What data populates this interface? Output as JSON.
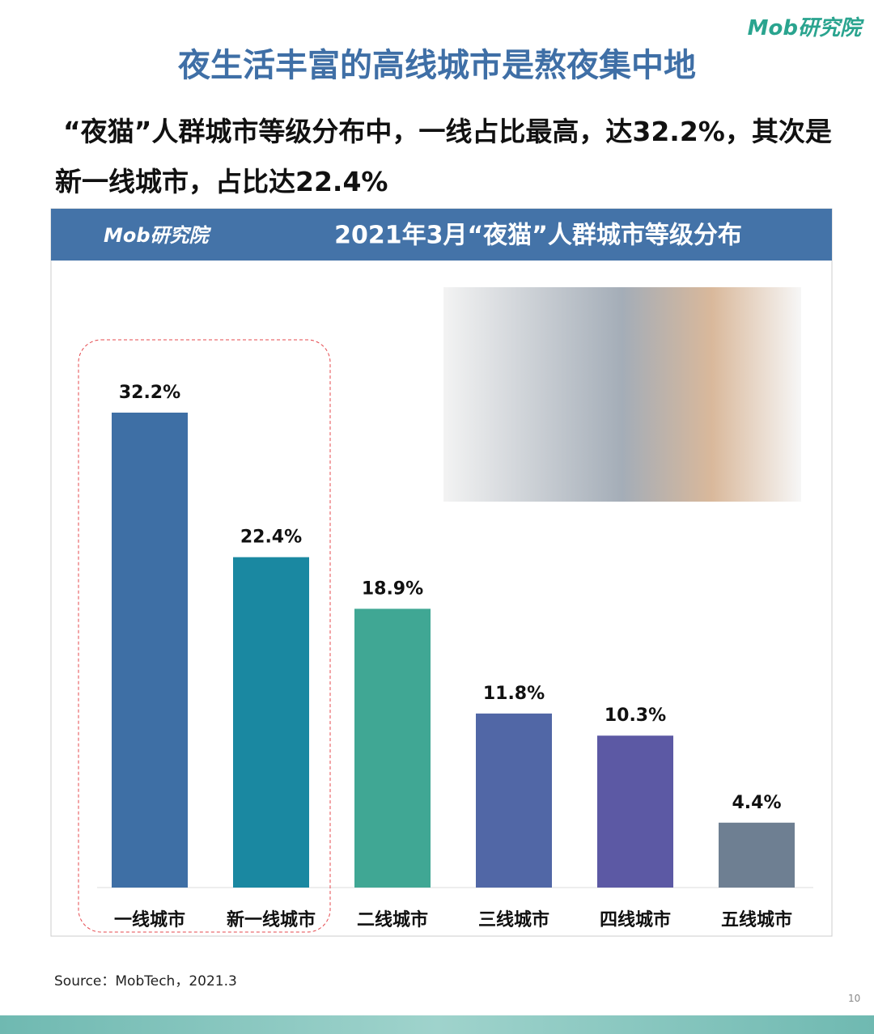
{
  "brand": "Mob研究院",
  "header": {
    "title": "夜生活丰富的高线城市是熬夜集中地",
    "subtitle": "“夜猫”人群城市等级分布中，一线占比最高，达32.2%，其次是新一线城市，占比达22.4%"
  },
  "panel": {
    "brand": "Mob研究院"
  },
  "chart_data": {
    "type": "bar",
    "title": "2021年3月“夜猫”人群城市等级分布",
    "categories": [
      "一线城市",
      "新一线城市",
      "二线城市",
      "三线城市",
      "四线城市",
      "五线城市"
    ],
    "values": [
      32.2,
      22.4,
      18.9,
      11.8,
      10.3,
      4.4
    ],
    "value_labels": [
      "32.2%",
      "22.4%",
      "18.9%",
      "11.8%",
      "10.3%",
      "4.4%"
    ],
    "colors": [
      "#3e6fa5",
      "#1a88a1",
      "#40a794",
      "#5167a6",
      "#5c59a4",
      "#6e7f92"
    ]
  },
  "footer": {
    "source": "Source：MobTech，2021.3",
    "page": "10"
  }
}
